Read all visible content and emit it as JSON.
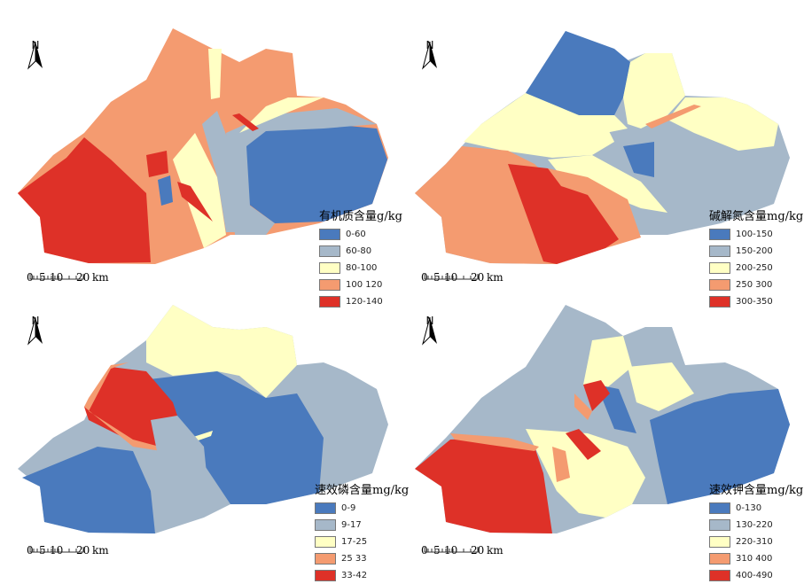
{
  "north_label": "N",
  "scale": {
    "labels": [
      "0",
      "5",
      "10",
      "20",
      "km"
    ]
  },
  "colors": {
    "c1": "#4a7abd",
    "c2": "#a6b8c9",
    "c3": "#ffffc4",
    "c4": "#f49b70",
    "c5": "#de3128"
  },
  "maps": [
    {
      "title": "有机质含量g/kg",
      "legend": [
        "0-60",
        "60-80",
        "80-100",
        "100 120",
        "120-140"
      ]
    },
    {
      "title": "碱解氮含量mg/kg",
      "legend": [
        "100-150",
        "150-200",
        "200-250",
        "250 300",
        "300-350"
      ]
    },
    {
      "title": "速效磷含量mg/kg",
      "legend": [
        "0-9",
        "9-17",
        "17-25",
        "25 33",
        "33-42"
      ]
    },
    {
      "title": "速效钾含量mg/kg",
      "legend": [
        "0-130",
        "130-220",
        "220-310",
        "310 400",
        "400-490"
      ]
    }
  ]
}
